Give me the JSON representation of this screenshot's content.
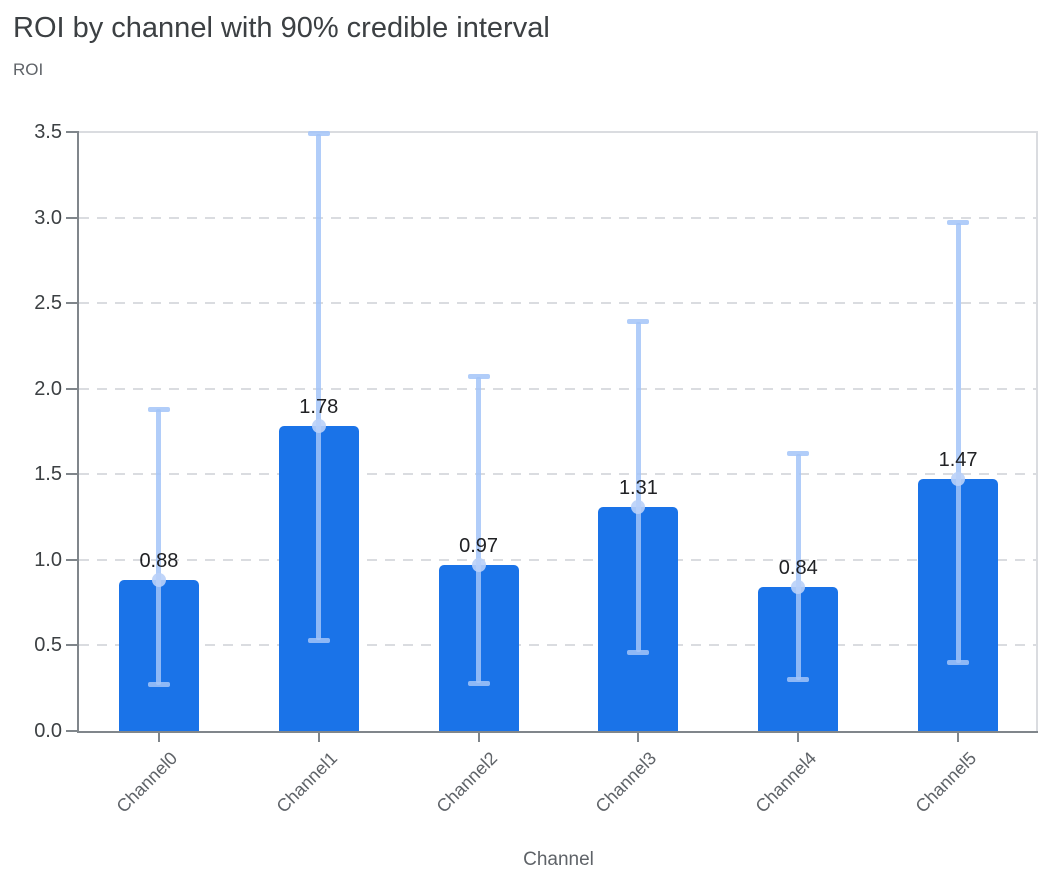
{
  "chart_data": {
    "type": "bar",
    "title": "ROI by channel with 90% credible interval",
    "xlabel": "Channel",
    "ylabel": "ROI",
    "categories": [
      "Channel0",
      "Channel1",
      "Channel2",
      "Channel3",
      "Channel4",
      "Channel5"
    ],
    "values": [
      0.88,
      1.78,
      0.97,
      1.31,
      0.84,
      1.47
    ],
    "value_labels": [
      "0.88",
      "1.78",
      "0.97",
      "1.31",
      "0.84",
      "1.47"
    ],
    "interval_low": [
      0.27,
      0.53,
      0.28,
      0.46,
      0.3,
      0.4
    ],
    "interval_high": [
      1.88,
      3.49,
      2.07,
      2.39,
      1.62,
      2.97
    ],
    "interval_label": "90% credible interval",
    "ylim": [
      0,
      3.5
    ],
    "ytick_values": [
      0,
      0.5,
      1,
      1.5,
      2,
      2.5,
      3,
      3.5
    ],
    "ytick_labels": [
      "0.0",
      "0.5",
      "1.0",
      "1.5",
      "2.0",
      "2.5",
      "3.0",
      "3.5"
    ],
    "grid": "horizontal-dashed",
    "legend": "none",
    "colors": {
      "bar": "#1a73e8",
      "interval": "#a3c4f8",
      "interval_dot": "#b9d0f8",
      "grid": "#dadce0",
      "axis": "#80868b",
      "title": "#3c4043",
      "y_tick_label": "#3c4043",
      "x_tick_label": "#5f6368",
      "axis_title": "#5f6368",
      "value_label": "#202124"
    }
  }
}
